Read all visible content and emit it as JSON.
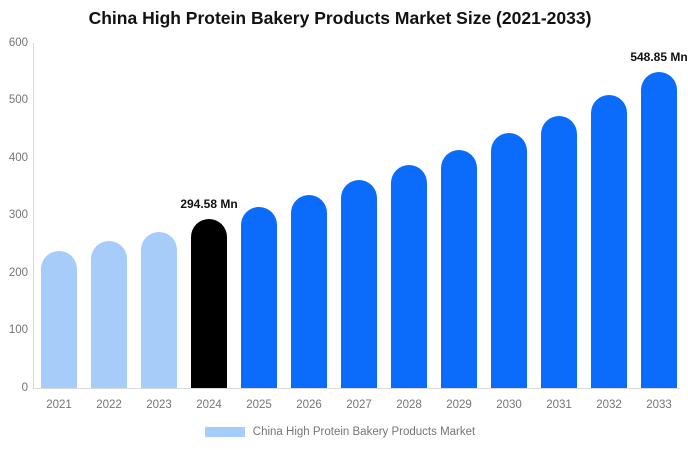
{
  "chart_data": {
    "type": "bar",
    "title": "China High Protein Bakery Products Market Size (2021-2033)",
    "categories": [
      "2021",
      "2022",
      "2023",
      "2024",
      "2025",
      "2026",
      "2027",
      "2028",
      "2029",
      "2030",
      "2031",
      "2032",
      "2033"
    ],
    "values": [
      238,
      255,
      272,
      294.58,
      314,
      336,
      361,
      387,
      414,
      444,
      473,
      510,
      548.85
    ],
    "bar_colors": [
      "#a6cdfa",
      "#a6cdfa",
      "#a6cdfa",
      "#000000",
      "#0b6cfb",
      "#0b6cfb",
      "#0b6cfb",
      "#0b6cfb",
      "#0b6cfb",
      "#0b6cfb",
      "#0b6cfb",
      "#0b6cfb",
      "#0b6cfb"
    ],
    "annotations": [
      {
        "index": 3,
        "text": "294.58 Mn"
      },
      {
        "index": 12,
        "text": "548.85 Mn"
      }
    ],
    "ylim": [
      0,
      600
    ],
    "yticks": [
      0,
      100,
      200,
      300,
      400,
      500,
      600
    ],
    "xlabel": "",
    "ylabel": "",
    "grid": false,
    "legend_position": "bottom",
    "legend": [
      {
        "label": "China High Protein Bakery Products Market",
        "color": "#a6cdfa"
      }
    ]
  },
  "colors": {
    "axis_line": "#d9d9d9",
    "tick_text": "#757575",
    "title_text": "#111111",
    "annotation_text": "#111111",
    "background": "#ffffff",
    "series_historical": "#a6cdfa",
    "series_base_year": "#000000",
    "series_forecast": "#0b6cfb"
  }
}
